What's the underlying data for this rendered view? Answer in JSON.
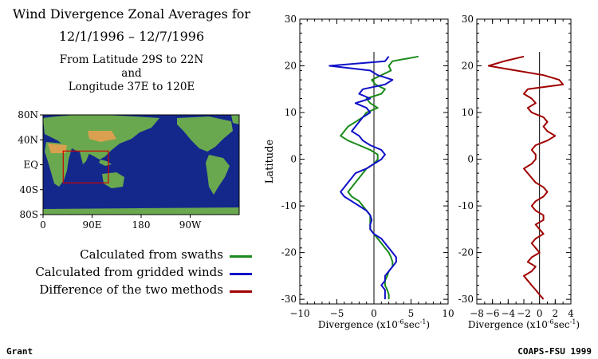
{
  "title": {
    "line1": "Wind Divergence Zonal Averages for",
    "line2": "12/1/1996 – 12/7/1996",
    "line3": "From Latitude 29S to 22N",
    "line4": "and",
    "line5": "Longitude 37E to 120E"
  },
  "map": {
    "lat_labels": [
      "80N",
      "40N",
      "EQ",
      "40S",
      "80S"
    ],
    "lon_labels": [
      "0",
      "90E",
      "180",
      "90W"
    ],
    "region_box": {
      "lat": [
        -29,
        22
      ],
      "lon": [
        37,
        120
      ]
    },
    "colors": {
      "ocean": "#14288c",
      "land": "#6aa84f",
      "box": "#d00000"
    }
  },
  "legend": [
    {
      "label": "Calculated from swaths",
      "color": "#1a8a1a"
    },
    {
      "label": "Calculated from gridded winds",
      "color": "#1010c8"
    },
    {
      "label": "Difference of the two methods",
      "color": "#a00000"
    }
  ],
  "credits": {
    "left": "Grant",
    "right": "COAPS-FSU 1999"
  },
  "chart_data": [
    {
      "type": "line",
      "orientation": "vertical",
      "ylabel": "Latitude",
      "xlabel_text": "Divergence (x10",
      "xlabel_exp": "-6",
      "xlabel_unit": "sec",
      "xlabel_exp2": "-1",
      "xlabel_close": ")",
      "xlim": [
        -10,
        10
      ],
      "ylim": [
        -31,
        30
      ],
      "xticks": [
        -10,
        -5,
        0,
        5,
        10
      ],
      "yticks": [
        -30,
        -20,
        -10,
        0,
        10,
        20,
        30
      ],
      "zero_line": {
        "x": 0,
        "ylim": [
          -30,
          23
        ]
      },
      "y": [
        22,
        21,
        20,
        19,
        18,
        17,
        16,
        15,
        14,
        13,
        12,
        11,
        10,
        9,
        8,
        7,
        6,
        5,
        4,
        3,
        2,
        1,
        0,
        -1,
        -2,
        -3,
        -4,
        -5,
        -6,
        -7,
        -8,
        -9,
        -10,
        -11,
        -12,
        -13,
        -14,
        -15,
        -16,
        -17,
        -18,
        -19,
        -20,
        -21,
        -22,
        -23,
        -24,
        -25,
        -26,
        -27,
        -28,
        -29,
        -30
      ],
      "series": [
        {
          "name": "Calculated from swaths",
          "color": "#1a8a1a",
          "values": [
            6.0,
            2.5,
            2.0,
            2.3,
            1.0,
            -0.3,
            0.2,
            1.5,
            1.0,
            -1.0,
            -0.5,
            0.5,
            -1.0,
            -1.5,
            -2.5,
            -3.5,
            -4.0,
            -4.5,
            -3.5,
            -2.0,
            -0.5,
            0.5,
            0.5,
            0.0,
            -1.0,
            -1.5,
            -2.0,
            -2.5,
            -3.0,
            -3.5,
            -3.0,
            -2.0,
            -1.5,
            -1.0,
            -0.5,
            -0.5,
            -0.5,
            -0.5,
            0.0,
            0.5,
            1.0,
            1.5,
            2.0,
            2.3,
            2.5,
            2.5,
            2.0,
            1.8,
            1.5,
            1.5,
            1.8,
            2.0,
            2.0
          ]
        },
        {
          "name": "Calculated from gridded winds",
          "color": "#1010c8",
          "values": [
            2.0,
            1.5,
            -6.0,
            -0.5,
            0.5,
            2.5,
            1.5,
            -1.5,
            -2.0,
            -0.5,
            -2.5,
            -1.0,
            -0.5,
            -1.5,
            -2.0,
            -2.5,
            -3.0,
            -2.0,
            -1.5,
            -0.5,
            1.0,
            1.5,
            1.0,
            0.0,
            -1.0,
            -2.5,
            -3.0,
            -3.5,
            -4.0,
            -4.5,
            -4.0,
            -3.0,
            -2.0,
            -1.0,
            -0.5,
            -0.3,
            -0.5,
            -0.5,
            0.0,
            1.0,
            1.5,
            2.0,
            2.5,
            3.0,
            3.0,
            2.5,
            2.0,
            1.5,
            1.5,
            1.0,
            1.5,
            1.5,
            1.5
          ]
        }
      ]
    },
    {
      "type": "line",
      "orientation": "vertical",
      "xlabel_text": "Divergence (x10",
      "xlabel_exp": "-6",
      "xlabel_unit": "sec",
      "xlabel_exp2": "-1",
      "xlabel_close": ")",
      "xlim": [
        -8,
        4
      ],
      "ylim": [
        -31,
        30
      ],
      "xticks": [
        -8,
        -6,
        -4,
        -2,
        0,
        2,
        4
      ],
      "yticks": [
        -30,
        -20,
        -10,
        0,
        10,
        20,
        30
      ],
      "zero_line": {
        "x": 0,
        "ylim": [
          -30,
          23
        ]
      },
      "y": [
        22,
        21,
        20,
        19,
        18,
        17,
        16,
        15,
        14,
        13,
        12,
        11,
        10,
        9,
        8,
        7,
        6,
        5,
        4,
        3,
        2,
        1,
        0,
        -1,
        -2,
        -3,
        -4,
        -5,
        -6,
        -7,
        -8,
        -9,
        -10,
        -11,
        -12,
        -13,
        -14,
        -15,
        -16,
        -17,
        -18,
        -19,
        -20,
        -21,
        -22,
        -23,
        -24,
        -25,
        -26,
        -27,
        -28,
        -29,
        -30
      ],
      "series": [
        {
          "name": "Difference of the two methods",
          "color": "#a00000",
          "values": [
            -2.0,
            -4.5,
            -6.5,
            -3.0,
            0.5,
            2.5,
            3.0,
            -1.5,
            -2.0,
            -1.0,
            -0.5,
            -1.5,
            -1.0,
            0.5,
            1.0,
            0.5,
            1.0,
            2.0,
            1.0,
            -0.5,
            -1.0,
            -0.5,
            -0.5,
            -1.0,
            -2.0,
            -1.5,
            -1.0,
            -0.5,
            0.5,
            1.0,
            0.5,
            -0.5,
            -1.0,
            -0.5,
            0.5,
            0.5,
            -0.5,
            0.0,
            0.5,
            -0.5,
            -1.0,
            -0.5,
            0.0,
            -1.0,
            -1.5,
            -0.5,
            -1.0,
            -2.0,
            -1.5,
            -1.0,
            -0.5,
            0.0,
            0.5
          ]
        }
      ]
    }
  ]
}
